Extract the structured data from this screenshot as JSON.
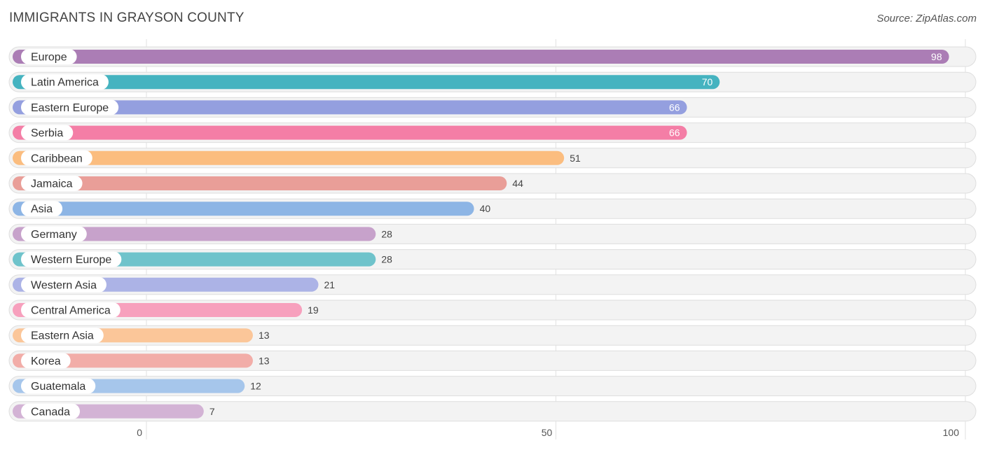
{
  "title": "IMMIGRANTS IN GRAYSON COUNTY",
  "source": "Source: ZipAtlas.com",
  "chart_data": {
    "type": "bar",
    "orientation": "horizontal",
    "categories": [
      "Europe",
      "Latin America",
      "Eastern Europe",
      "Serbia",
      "Caribbean",
      "Jamaica",
      "Asia",
      "Germany",
      "Western Europe",
      "Western Asia",
      "Central America",
      "Eastern Asia",
      "Korea",
      "Guatemala",
      "Canada"
    ],
    "values": [
      98,
      70,
      66,
      66,
      51,
      44,
      40,
      28,
      28,
      21,
      19,
      13,
      13,
      12,
      7
    ],
    "colors": [
      "#ab7db5",
      "#45b3c0",
      "#949fdf",
      "#f47ea6",
      "#fbbd7f",
      "#e99e98",
      "#8db5e5",
      "#c7a2cb",
      "#6fc3cb",
      "#acb3e6",
      "#f7a0bd",
      "#fbc699",
      "#f2ada8",
      "#a6c6eb",
      "#d3b3d5"
    ],
    "xlim": [
      0,
      100
    ],
    "xticks": [
      0,
      50,
      100
    ],
    "grid": true
  }
}
